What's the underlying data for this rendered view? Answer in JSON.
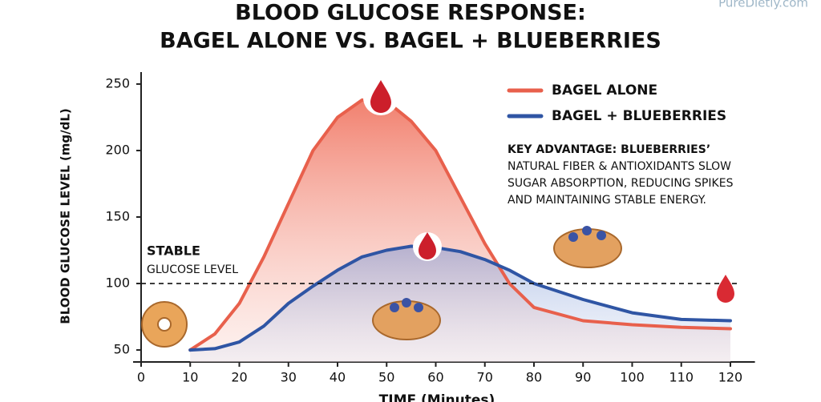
{
  "chart_data": {
    "type": "line",
    "title": [
      "BLOOD GLUCOSE RESPONSE:",
      "BAGEL ALONE VS. BAGEL + BLUEBERRIES"
    ],
    "watermark": "PureDietly.com",
    "x_label": "TIME (Minutes)",
    "y_label": "BLOOD GLUCOSE LEVEL (mg/dL)",
    "x": [
      10,
      15,
      20,
      25,
      30,
      35,
      40,
      45,
      50,
      55,
      60,
      65,
      70,
      75,
      80,
      90,
      100,
      110,
      120
    ],
    "series": [
      {
        "name": "BAGEL ALONE",
        "color": "#e8604c",
        "values": [
          50,
          62,
          85,
          120,
          160,
          200,
          225,
          238,
          237,
          222,
          200,
          165,
          130,
          100,
          82,
          72,
          69,
          67,
          66
        ]
      },
      {
        "name": "BAGEL + BLUEBERRIES",
        "color": "#2f55a4",
        "values": [
          50,
          51,
          56,
          68,
          85,
          98,
          110,
          120,
          125,
          128,
          127,
          124,
          118,
          110,
          100,
          88,
          78,
          73,
          72
        ]
      }
    ],
    "xlim": [
      0,
      125
    ],
    "ylim": [
      41,
      259
    ],
    "xticks": [
      0,
      10,
      20,
      30,
      40,
      50,
      60,
      70,
      80,
      90,
      100,
      110,
      120
    ],
    "yticks": [
      50,
      100,
      150,
      200,
      250
    ],
    "reference_line": {
      "value": 100,
      "label": [
        "STABLE",
        "GLUCOSE LEVEL"
      ]
    },
    "annotation": [
      "KEY ADVANTAGE: BLUEBERRIES’",
      "NATURAL FIBER & ANTIOXIDANTS SLOW",
      "SUGAR ABSORPTION, REDUCING SPIKES",
      "AND MAINTAINING STABLE ENERGY."
    ],
    "legend": "upper right"
  }
}
